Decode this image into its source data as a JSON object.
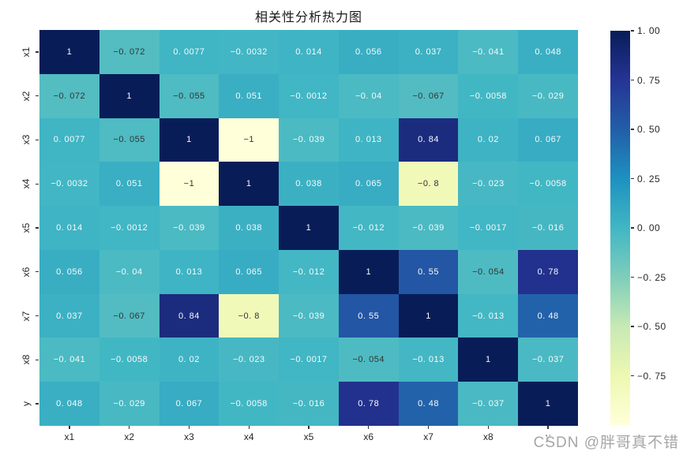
{
  "chart_data": {
    "type": "heatmap",
    "title": "相关性分析热力图",
    "x_labels": [
      "x1",
      "x2",
      "x3",
      "x4",
      "x5",
      "x6",
      "x7",
      "x8",
      "y"
    ],
    "y_labels": [
      "x1",
      "x2",
      "x3",
      "x4",
      "x5",
      "x6",
      "x7",
      "x8",
      "y"
    ],
    "values": [
      [
        1,
        -0.072,
        0.0077,
        -0.0032,
        0.014,
        0.056,
        0.037,
        -0.041,
        0.048
      ],
      [
        -0.072,
        1,
        -0.055,
        0.051,
        -0.0012,
        -0.04,
        -0.067,
        -0.0058,
        -0.029
      ],
      [
        0.0077,
        -0.055,
        1,
        -1,
        -0.039,
        0.013,
        0.84,
        0.02,
        0.067
      ],
      [
        -0.0032,
        0.051,
        -1,
        1,
        0.038,
        0.065,
        -0.8,
        -0.023,
        -0.0058
      ],
      [
        0.014,
        -0.0012,
        -0.039,
        0.038,
        1,
        -0.012,
        -0.039,
        -0.0017,
        -0.016
      ],
      [
        0.056,
        -0.04,
        0.013,
        0.065,
        -0.012,
        1,
        0.55,
        -0.054,
        0.78
      ],
      [
        0.037,
        -0.067,
        0.84,
        -0.8,
        -0.039,
        0.55,
        1,
        -0.013,
        0.48
      ],
      [
        -0.041,
        -0.0058,
        0.02,
        -0.023,
        -0.0017,
        -0.054,
        -0.013,
        1,
        -0.037
      ],
      [
        0.048,
        -0.029,
        0.067,
        -0.0058,
        -0.016,
        0.78,
        0.48,
        -0.037,
        1
      ]
    ],
    "annotations": [
      [
        "1",
        "−0. 072",
        "0. 0077",
        "−0. 0032",
        "0. 014",
        "0. 056",
        "0. 037",
        "−0. 041",
        "0. 048"
      ],
      [
        "−0. 072",
        "1",
        "−0. 055",
        "0. 051",
        "−0. 0012",
        "−0. 04",
        "−0. 067",
        "−0. 0058",
        "−0. 029"
      ],
      [
        "0. 0077",
        "−0. 055",
        "1",
        "−1",
        "−0. 039",
        "0. 013",
        "0. 84",
        "0. 02",
        "0. 067"
      ],
      [
        "−0. 0032",
        "0. 051",
        "−1",
        "1",
        "0. 038",
        "0. 065",
        "−0. 8",
        "−0. 023",
        "−0. 0058"
      ],
      [
        "0. 014",
        "−0. 0012",
        "−0. 039",
        "0. 038",
        "1",
        "−0. 012",
        "−0. 039",
        "−0. 0017",
        "−0. 016"
      ],
      [
        "0. 056",
        "−0. 04",
        "0. 013",
        "0. 065",
        "−0. 012",
        "1",
        "0. 55",
        "−0. 054",
        "0. 78"
      ],
      [
        "0. 037",
        "−0. 067",
        "0. 84",
        "−0. 8",
        "−0. 039",
        "0. 55",
        "1",
        "−0. 013",
        "0. 48"
      ],
      [
        "−0. 041",
        "−0. 0058",
        "0. 02",
        "−0. 023",
        "−0. 0017",
        "−0. 054",
        "−0. 013",
        "1",
        "−0. 037"
      ],
      [
        "0. 048",
        "−0. 029",
        "0. 067",
        "−0. 0058",
        "−0. 016",
        "0. 78",
        "0. 48",
        "−0. 037",
        "1"
      ]
    ],
    "vmin": -1,
    "vmax": 1,
    "colormap_anchors": [
      "#ffffd9",
      "#edf8b1",
      "#c7e9b4",
      "#7fcdbb",
      "#41b6c4",
      "#1d91c0",
      "#225ea8",
      "#253494",
      "#081d58"
    ],
    "annotation_dark_color": "#333333",
    "annotation_light_color": "#fafafa",
    "luminance_threshold": 0.408,
    "grid": "off",
    "colorbar": {
      "position": "right",
      "tick_labels": [
        "1. 00",
        "0. 75",
        "0. 50",
        "0. 25",
        "0. 00",
        "−0. 25",
        "−0. 50",
        "−0. 75"
      ],
      "tick_values": [
        1,
        0.75,
        0.5,
        0.25,
        0,
        -0.25,
        -0.5,
        -0.75
      ]
    }
  },
  "watermark": {
    "text": "CSDN @胖哥真不错",
    "color": "#a6a6a6"
  }
}
